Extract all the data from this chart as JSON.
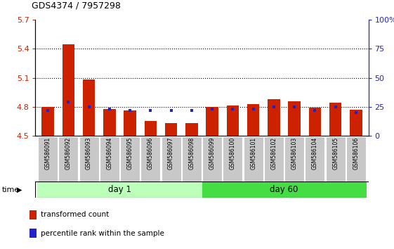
{
  "title": "GDS4374 / 7957298",
  "samples": [
    "GSM586091",
    "GSM586092",
    "GSM586093",
    "GSM586094",
    "GSM586095",
    "GSM586096",
    "GSM586097",
    "GSM586098",
    "GSM586099",
    "GSM586100",
    "GSM586101",
    "GSM586102",
    "GSM586103",
    "GSM586104",
    "GSM586105",
    "GSM586106"
  ],
  "red_values": [
    4.8,
    5.45,
    5.08,
    4.78,
    4.76,
    4.65,
    4.63,
    4.63,
    4.8,
    4.81,
    4.83,
    4.88,
    4.855,
    4.79,
    4.84,
    4.77
  ],
  "blue_values": [
    22,
    29,
    25,
    23,
    22,
    22,
    22,
    22,
    23,
    23,
    23,
    25,
    25,
    22,
    25,
    20
  ],
  "ylim_left": [
    4.5,
    5.7
  ],
  "ylim_right": [
    0,
    100
  ],
  "yticks_left": [
    4.5,
    4.8,
    5.1,
    5.4,
    5.7
  ],
  "yticks_right": [
    0,
    25,
    50,
    75,
    100
  ],
  "ytick_labels_right": [
    "0",
    "25",
    "50",
    "75",
    "100%"
  ],
  "red_color": "#cc2200",
  "blue_color": "#2222cc",
  "bar_width": 0.6,
  "groups": [
    {
      "label": "day 1",
      "start": 0,
      "end": 7,
      "color": "#bbffbb"
    },
    {
      "label": "day 60",
      "start": 8,
      "end": 15,
      "color": "#44dd44"
    }
  ],
  "group_bar_bg": "#c8c8c8",
  "legend_items": [
    {
      "label": "transformed count",
      "color": "#cc2200"
    },
    {
      "label": "percentile rank within the sample",
      "color": "#2222cc"
    }
  ],
  "dotted_line_color": "#000000",
  "background_color": "#ffffff",
  "time_label": "time",
  "title_color": "#000000",
  "left_tick_color": "#cc2200",
  "right_tick_color": "#2222cc"
}
